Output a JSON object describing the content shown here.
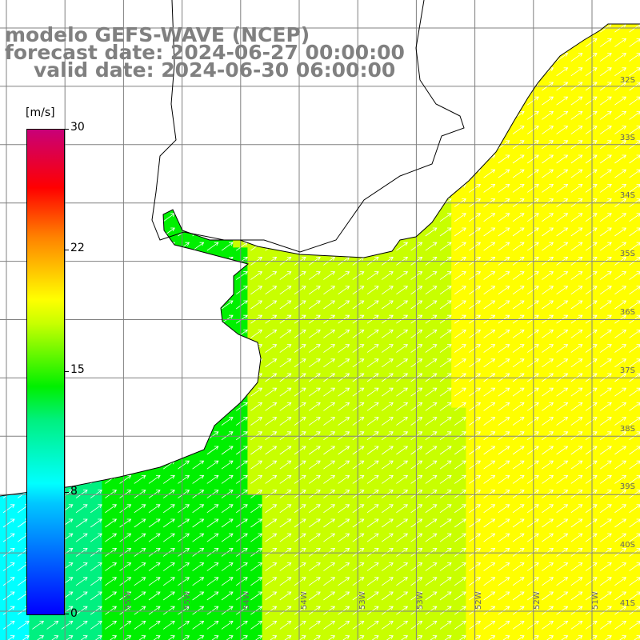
{
  "title": {
    "line1": "modelo GEFS-WAVE (NCEP)",
    "line2": "forecast date: 2024-06-27 00:00:00",
    "line3": "valid date: 2024-06-30 06:00:00"
  },
  "colorbar": {
    "unit": "[m/s]",
    "ticks": [
      {
        "label": "30",
        "value": 30
      },
      {
        "label": "22",
        "value": 22
      },
      {
        "label": "15",
        "value": 15
      },
      {
        "label": "8",
        "value": 8
      },
      {
        "label": "0",
        "value": 0
      }
    ],
    "range": [
      0,
      30
    ],
    "colors": [
      "#0000ff",
      "#00c8ff",
      "#00ffff",
      "#00f080",
      "#00f000",
      "#c8ff00",
      "#ffff00",
      "#ff8000",
      "#ff0000",
      "#c80078"
    ]
  },
  "map": {
    "lat_labels": [
      "32S",
      "33S",
      "34S",
      "35S",
      "36S",
      "37S",
      "38S",
      "39S",
      "40S",
      "41S"
    ],
    "lon_labels": [
      "55W",
      "55W",
      "54W",
      "54W",
      "53W",
      "53W",
      "52W",
      "52W",
      "51W"
    ],
    "wind_direction": "northeast",
    "land_color": "#ffffff",
    "grid_color": "#808080",
    "coast_color": "#000000",
    "arrow_color": "#ffffff"
  }
}
